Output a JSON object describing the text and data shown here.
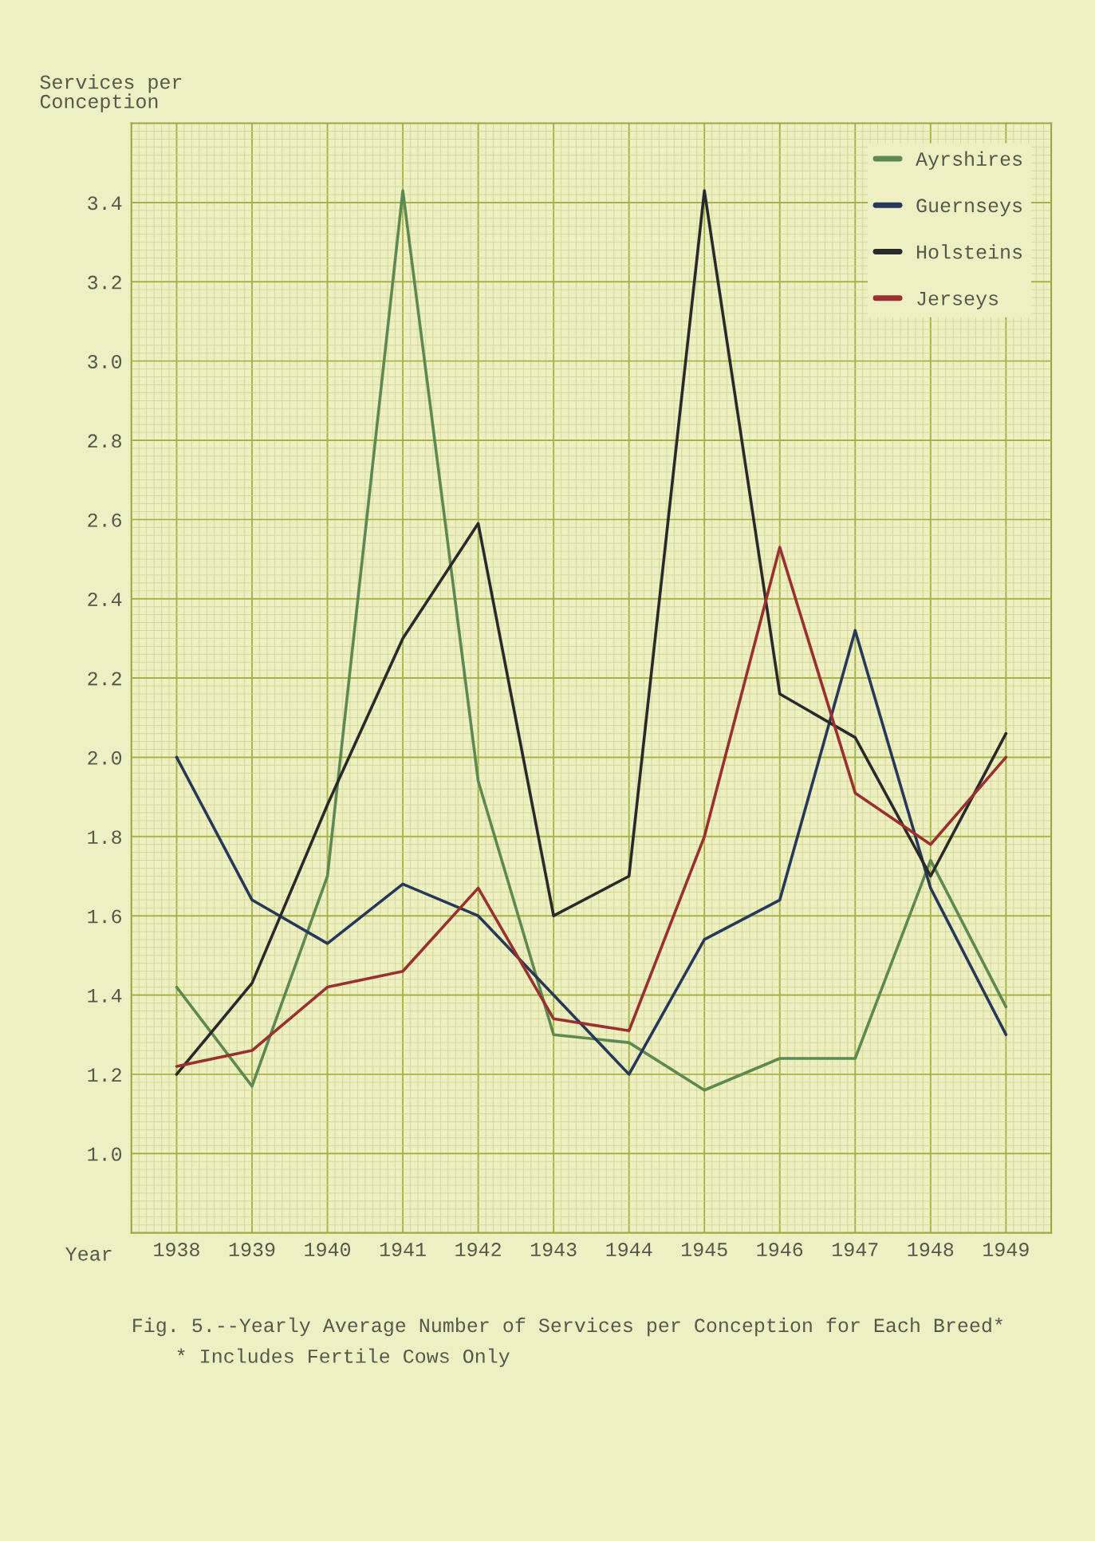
{
  "chart_data": {
    "type": "line",
    "title": "Fig. 5.--Yearly Average Number of Services per Conception for Each Breed*",
    "xlabel": "Year",
    "ylabel": "Services per\nConception",
    "annotations": [
      "* Includes Fertile Cows Only"
    ],
    "categories": [
      "1938",
      "1939",
      "1940",
      "1941",
      "1942",
      "1943",
      "1944",
      "1945",
      "1946",
      "1947",
      "1948",
      "1949"
    ],
    "series": [
      {
        "name": "Ayrshires",
        "color": "#5e8a52",
        "values": [
          1.42,
          1.17,
          1.7,
          3.43,
          1.94,
          1.3,
          1.28,
          1.16,
          1.24,
          1.24,
          1.74,
          1.37
        ]
      },
      {
        "name": "Guernseys",
        "color": "#283858",
        "values": [
          2.0,
          1.64,
          1.53,
          1.68,
          1.6,
          1.4,
          1.2,
          1.54,
          1.64,
          2.32,
          1.67,
          1.3
        ]
      },
      {
        "name": "Holsteins",
        "color": "#2a2a2a",
        "values": [
          1.2,
          1.43,
          1.88,
          2.3,
          2.59,
          1.6,
          1.7,
          3.43,
          2.16,
          2.05,
          1.7,
          2.06
        ]
      },
      {
        "name": "Jerseys",
        "color": "#9a3030",
        "values": [
          1.22,
          1.26,
          1.42,
          1.46,
          1.67,
          1.34,
          1.31,
          1.8,
          2.53,
          1.91,
          1.78,
          2.0
        ]
      }
    ],
    "ylim": [
      0.8,
      3.6
    ],
    "yticks": [
      3.4,
      3.2,
      {
        "value": 3,
        "label": "3.0"
      },
      2.8,
      2.6,
      2.4,
      2.2,
      {
        "value": 2,
        "label": "2.0"
      },
      1.8,
      1.6,
      1.4,
      1.2,
      {
        "value": 1,
        "label": "1.0"
      }
    ],
    "grid": true,
    "legend": "top right"
  }
}
